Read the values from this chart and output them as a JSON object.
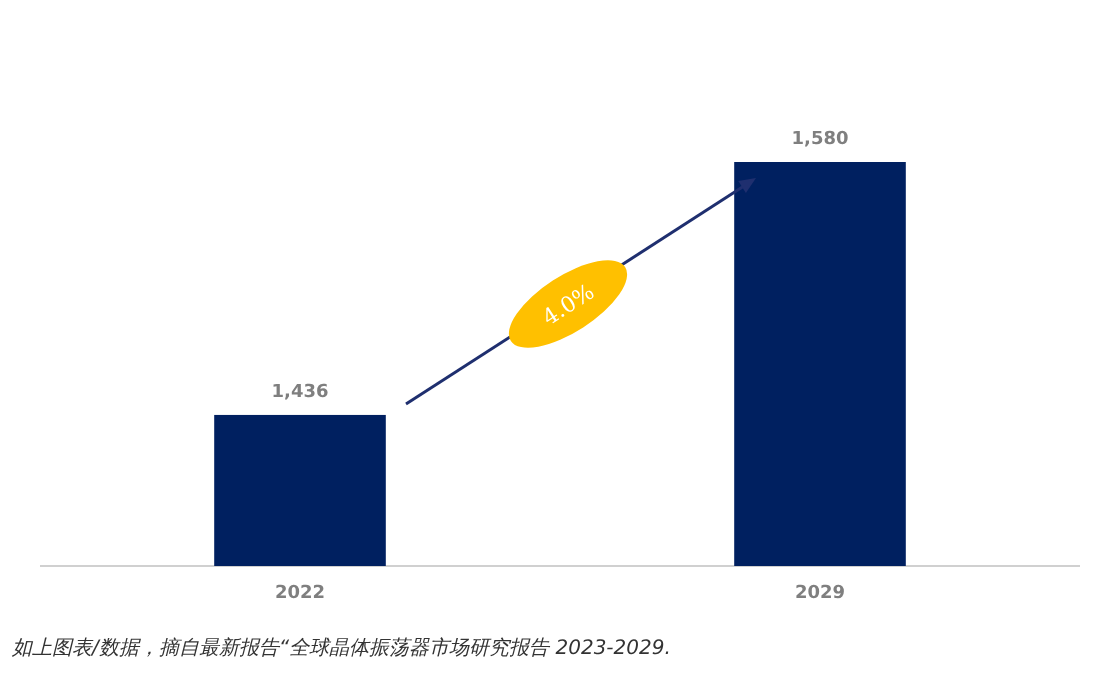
{
  "chart_data": {
    "type": "bar",
    "categories": [
      "2022",
      "2029"
    ],
    "values": [
      1436,
      1580
    ],
    "value_labels": [
      "1,436",
      "1,580"
    ],
    "color": "#002060",
    "ylim": [
      1350,
      1580
    ],
    "tick_labels": "x",
    "annotations": [
      "4.0%",
      "如上图表/数据，摘自最新报告“全球晶体振荡器市场研究报告 2023-2029."
    ]
  }
}
